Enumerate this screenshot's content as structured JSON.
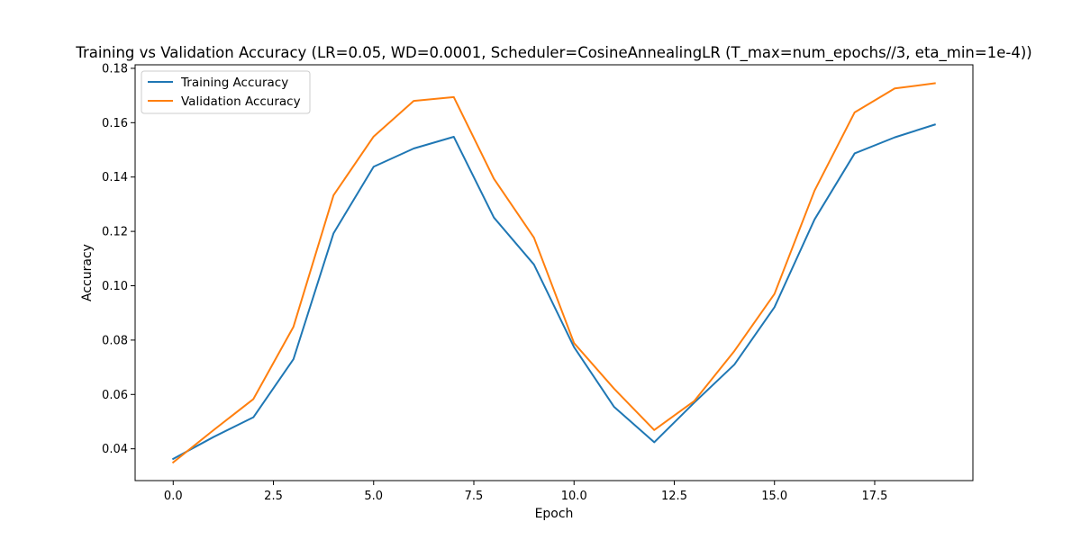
{
  "chart_data": {
    "type": "line",
    "title": "Training vs Validation Accuracy (LR=0.05, WD=0.0001, Scheduler=CosineAnnealingLR (T_max=num_epochs//3, eta_min=1e-4))",
    "xlabel": "Epoch",
    "ylabel": "Accuracy",
    "xlim": [
      -0.95,
      19.95
    ],
    "ylim": [
      0.0283,
      0.1813
    ],
    "x_ticks": [
      0.0,
      2.5,
      5.0,
      7.5,
      10.0,
      12.5,
      15.0,
      17.5
    ],
    "x_tick_labels": [
      "0.0",
      "2.5",
      "5.0",
      "7.5",
      "10.0",
      "12.5",
      "15.0",
      "17.5"
    ],
    "y_ticks": [
      0.04,
      0.06,
      0.08,
      0.1,
      0.12,
      0.14,
      0.16,
      0.18
    ],
    "y_tick_labels": [
      "0.04",
      "0.06",
      "0.08",
      "0.10",
      "0.12",
      "0.14",
      "0.16",
      "0.18"
    ],
    "grid": false,
    "legend_position": "top-left",
    "x": [
      0,
      1,
      2,
      3,
      4,
      5,
      6,
      7,
      8,
      9,
      10,
      11,
      12,
      13,
      14,
      15,
      16,
      17,
      18,
      19
    ],
    "series": [
      {
        "name": "Training Accuracy",
        "color": "#1f77b4",
        "values": [
          0.0363,
          0.0443,
          0.0516,
          0.073,
          0.1193,
          0.1438,
          0.1505,
          0.1548,
          0.1251,
          0.1078,
          0.0774,
          0.0554,
          0.0424,
          0.057,
          0.071,
          0.0921,
          0.1244,
          0.1487,
          0.1546,
          0.1593
        ]
      },
      {
        "name": "Validation Accuracy",
        "color": "#ff7f0e",
        "values": [
          0.035,
          0.0468,
          0.0583,
          0.0849,
          0.1333,
          0.1549,
          0.168,
          0.1694,
          0.1394,
          0.1177,
          0.0789,
          0.0621,
          0.0469,
          0.0576,
          0.076,
          0.097,
          0.135,
          0.1638,
          0.1726,
          0.1745
        ]
      }
    ]
  }
}
